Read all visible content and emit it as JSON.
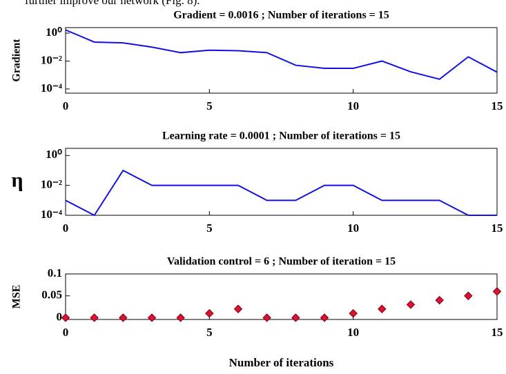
{
  "header_text": "further improve our network (Fig. 8).",
  "chart_data": [
    {
      "type": "line",
      "title": "Gradient = 0.0016 ; Number of iterations = 15",
      "ylabel": "Gradient",
      "log_scale": true,
      "color": "#1010e0",
      "x": [
        0,
        1,
        2,
        3,
        4,
        5,
        6,
        7,
        8,
        9,
        10,
        11,
        12,
        13,
        14,
        15
      ],
      "values": [
        1.7,
        0.23,
        0.2,
        0.1,
        0.04,
        0.06,
        0.055,
        0.04,
        0.005,
        0.003,
        0.003,
        0.01,
        0.0017,
        0.0005,
        0.02,
        0.0016
      ],
      "xlim": [
        0,
        15
      ],
      "xticks": [
        0,
        5,
        10,
        15
      ],
      "ylim": [
        5e-05,
        2.5
      ],
      "yticks": [
        {
          "value": 1,
          "label": "10⁰"
        },
        {
          "value": 0.01,
          "label": "10⁻²"
        },
        {
          "value": 0.0001,
          "label": "10⁻⁴"
        }
      ]
    },
    {
      "type": "line",
      "title": "Learning rate = 0.0001 ; Number of iterations = 15",
      "ylabel": "η",
      "log_scale": true,
      "color": "#1010e0",
      "x": [
        0,
        1,
        2,
        3,
        4,
        5,
        6,
        7,
        8,
        9,
        10,
        11,
        12,
        13,
        14,
        15
      ],
      "values": [
        0.001,
        0.0001,
        0.1,
        0.01,
        0.01,
        0.01,
        0.01,
        0.001,
        0.001,
        0.01,
        0.01,
        0.001,
        0.001,
        0.001,
        0.0001,
        0.0001
      ],
      "xlim": [
        0,
        15
      ],
      "xticks": [
        0,
        5,
        10,
        15
      ],
      "ylim": [
        0.0001,
        3
      ],
      "yticks": [
        {
          "value": 1,
          "label": "10⁰"
        },
        {
          "value": 0.01,
          "label": "10⁻²"
        },
        {
          "value": 0.0001,
          "label": "10⁻⁴"
        }
      ]
    },
    {
      "type": "scatter",
      "title": "Validation control = 6 ; Number of iteration = 15",
      "ylabel": "MSE",
      "xlabel": "Number of iterations",
      "log_scale": false,
      "color": "#e0103a",
      "x": [
        0,
        1,
        2,
        3,
        4,
        5,
        6,
        7,
        8,
        9,
        10,
        11,
        12,
        13,
        14,
        15
      ],
      "values": [
        0,
        0,
        0,
        0,
        0,
        0.01,
        0.02,
        0,
        0,
        0,
        0.01,
        0.02,
        0.03,
        0.04,
        0.05,
        0.06
      ],
      "xlim": [
        0,
        15
      ],
      "xticks": [
        0,
        5,
        10,
        15
      ],
      "ylim": [
        -0.004,
        0.1
      ],
      "yticks": [
        0.1,
        0.05,
        0
      ]
    }
  ]
}
